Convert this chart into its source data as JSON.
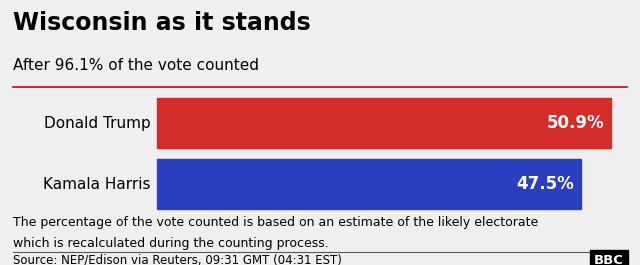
{
  "title": "Wisconsin as it stands",
  "subtitle": "After 96.1% of the vote counted",
  "candidates": [
    "Donald Trump",
    "Kamala Harris"
  ],
  "values": [
    50.9,
    47.5
  ],
  "bar_colors": [
    "#D42B2B",
    "#2A3FBF"
  ],
  "bar_labels": [
    "50.9%",
    "47.5%"
  ],
  "footnote_line1": "The percentage of the vote counted is based on an estimate of the likely electorate",
  "footnote_line2": "which is recalculated during the counting process.",
  "source": "Source: NEP/Edison via Reuters, 09:31 GMT (04:31 EST)",
  "bbc_logo": "BBC",
  "background_color": "#EFEFEF",
  "title_fontsize": 17,
  "subtitle_fontsize": 11,
  "label_fontsize": 11,
  "bar_label_fontsize": 12,
  "footnote_fontsize": 9,
  "source_fontsize": 8.5
}
